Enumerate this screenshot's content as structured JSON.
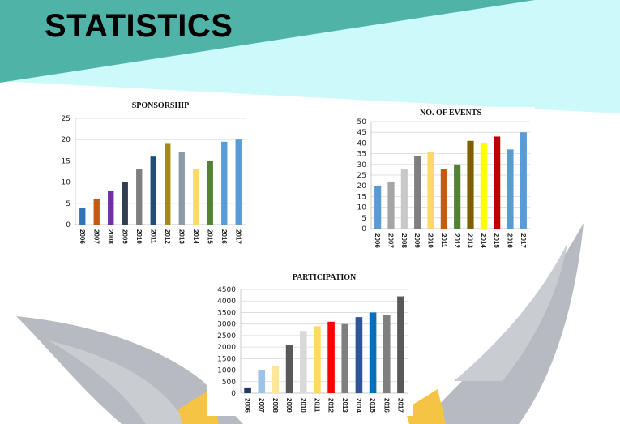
{
  "slide": {
    "title": "STATISTICS"
  },
  "colors": {
    "band": "#4fb3a8",
    "light_band": "#ccfafa",
    "emblem": "#b0b3ba",
    "accent": "#f6c445"
  },
  "chart_data": [
    {
      "id": "sponsorship",
      "type": "bar",
      "title": "SPONSORSHIP",
      "categories": [
        "2006",
        "2007",
        "2008",
        "2009",
        "2010",
        "2011",
        "2012",
        "2013",
        "2014",
        "2015",
        "2016",
        "2017"
      ],
      "values": [
        4,
        6,
        8,
        10,
        13,
        16,
        19,
        17,
        13,
        15,
        19.5,
        20
      ],
      "colors": [
        "#2e75b6",
        "#c55a11",
        "#7030a0",
        "#333f50",
        "#7f7f7f",
        "#1f4e79",
        "#a58a0d",
        "#8c9aa8",
        "#ffd966",
        "#548235",
        "#5b9bd5",
        "#5b9bd5"
      ],
      "ylim": [
        0,
        25
      ],
      "yticks": [
        0,
        5,
        10,
        15,
        20,
        25
      ],
      "grid": true
    },
    {
      "id": "events",
      "type": "bar",
      "title": "NO. OF EVENTS",
      "categories": [
        "2006",
        "2007",
        "2008",
        "2009",
        "2010",
        "2011",
        "2012",
        "2013",
        "2014",
        "2015",
        "2016",
        "2017"
      ],
      "values": [
        20,
        22,
        28,
        34,
        36,
        28,
        30,
        41,
        40,
        43,
        37,
        45
      ],
      "colors": [
        "#5b9bd5",
        "#a5a5a5",
        "#c9c9c9",
        "#7f7f7f",
        "#ffd966",
        "#c55a11",
        "#548235",
        "#7f6000",
        "#ffff00",
        "#c00000",
        "#5b9bd5",
        "#5b9bd5"
      ],
      "ylim": [
        0,
        50
      ],
      "yticks": [
        0,
        5,
        10,
        15,
        20,
        25,
        30,
        35,
        40,
        45,
        50
      ],
      "grid": true
    },
    {
      "id": "participation",
      "type": "bar",
      "title": "PARTICIPATION",
      "categories": [
        "2006",
        "2007",
        "2008",
        "2009",
        "2010",
        "2011",
        "2012",
        "2013",
        "2014",
        "2015",
        "2016",
        "2017"
      ],
      "values": [
        250,
        1000,
        1200,
        2100,
        2700,
        2900,
        3100,
        3000,
        3300,
        3500,
        3400,
        4200
      ],
      "colors": [
        "#1f3864",
        "#9dc3e6",
        "#ffe699",
        "#595959",
        "#d9d9d9",
        "#ffd966",
        "#ff0000",
        "#7f7f7f",
        "#2f5597",
        "#0070c0",
        "#7f7f7f",
        "#595959"
      ],
      "ylim": [
        0,
        4500
      ],
      "yticks": [
        0,
        500,
        1000,
        1500,
        2000,
        2500,
        3000,
        3500,
        4000,
        4500
      ],
      "grid": true
    }
  ]
}
